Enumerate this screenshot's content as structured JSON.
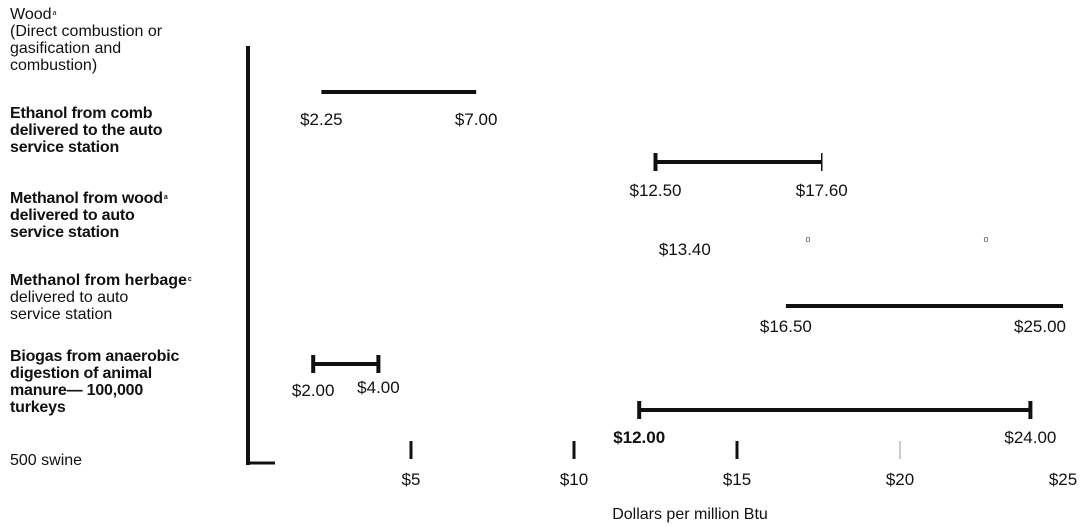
{
  "chart_data": {
    "type": "range-bar",
    "xlabel": "Dollars per million Btu",
    "xlim": [
      0,
      25
    ],
    "x_ticks": [
      {
        "value": 5,
        "label": "$5"
      },
      {
        "value": 10,
        "label": "$10"
      },
      {
        "value": 15,
        "label": "$15"
      },
      {
        "value": 20,
        "label": "$20"
      },
      {
        "value": 25,
        "label": "$25"
      }
    ],
    "categories": [
      {
        "lines": [
          "Wood",
          "(Direct combustion or",
          "gasification and",
          "combustion)"
        ],
        "sup": "a",
        "bold": false
      },
      {
        "lines": [
          "Ethanol from comb",
          "delivered to the auto",
          "service station"
        ],
        "sup": "",
        "bold": true
      },
      {
        "lines": [
          "Methanol from wood",
          "delivered to auto",
          "service station"
        ],
        "sup": "a",
        "bold": true
      },
      {
        "lines": [
          "Methanol from herbage",
          "delivered to auto",
          "service station"
        ],
        "sup": "c",
        "bold": "first"
      },
      {
        "lines": [
          "Biogas from anaerobic",
          "digestion of animal",
          "manure— 100,000",
          "turkeys"
        ],
        "sup": "",
        "bold": true
      },
      {
        "lines": [
          "500 swine"
        ],
        "sup": "",
        "bold": false
      }
    ],
    "ranges": [
      {
        "category": "Wood",
        "low": 2.25,
        "high": 7.0,
        "low_label": "$2.25",
        "high_label": "$7.00"
      },
      {
        "category": "Ethanol from comb",
        "low": 12.5,
        "high": 17.6,
        "low_label": "$12.50",
        "high_label": "$17.60"
      },
      {
        "category": "Methanol from wood",
        "low": 13.4,
        "high": 20.0,
        "low_label": "$13.40",
        "high_label": ""
      },
      {
        "category": "Methanol from herbage",
        "low": 16.5,
        "high": 25.0,
        "low_label": "$16.50",
        "high_label": "$25.00"
      },
      {
        "category": "Biogas from anaerobic digestion of animal manure— 100,000 turkeys",
        "low": 2.0,
        "high": 4.0,
        "low_label": "$2.00",
        "high_label": "$4.00"
      },
      {
        "category": "500 swine",
        "low": 12.0,
        "high": 24.0,
        "low_label": "$12.00",
        "high_label": "$24.00"
      }
    ]
  }
}
